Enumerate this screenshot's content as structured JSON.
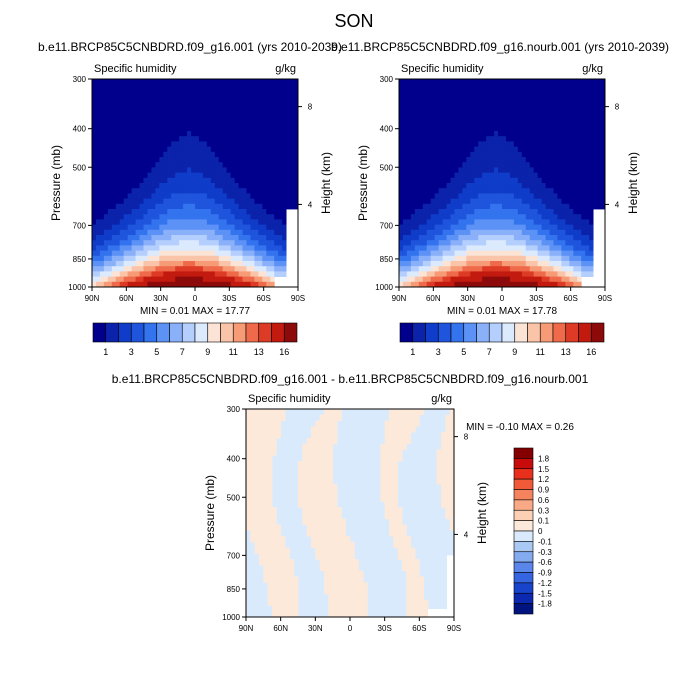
{
  "title": "SON",
  "chart_data": [
    {
      "type": "heatmap",
      "title": "b.e11.BRCP85C5CNBDRD.f09_g16.001 (yrs 2010-2039)",
      "left_label": "Specific humidity",
      "units": "g/kg",
      "ylabel": "Pressure (mb)",
      "ylabel_right": "Height (km)",
      "x_ticks": [
        "90N",
        "60N",
        "30N",
        "0",
        "30S",
        "60S",
        "90S"
      ],
      "y_ticks": [
        "300",
        "400",
        "500",
        "700",
        "850",
        "1000"
      ],
      "y_right_ticks": [
        "8",
        "4"
      ],
      "stats": "MIN =   0.01   MAX =   17.77",
      "colorbar_ticks": [
        "1",
        "3",
        "5",
        "7",
        "9",
        "11",
        "13",
        "16"
      ],
      "levels": [
        1,
        2,
        3,
        4,
        5,
        6,
        7,
        8,
        9,
        10,
        11,
        12,
        13,
        14,
        16
      ],
      "min": 0.01,
      "max": 17.77,
      "ylim": [
        1000,
        300
      ],
      "xlim": [
        90,
        -90
      ]
    },
    {
      "type": "heatmap",
      "title": "b.e11.BRCP85C5CNBDRD.f09_g16.nourb.001 (yrs 2010-2039)",
      "left_label": "Specific humidity",
      "units": "g/kg",
      "ylabel": "Pressure (mb)",
      "ylabel_right": "Height (km)",
      "x_ticks": [
        "90N",
        "60N",
        "30N",
        "0",
        "30S",
        "60S",
        "90S"
      ],
      "y_ticks": [
        "300",
        "400",
        "500",
        "700",
        "850",
        "1000"
      ],
      "y_right_ticks": [
        "8",
        "4"
      ],
      "stats": "MIN =   0.01   MAX =   17.78",
      "colorbar_ticks": [
        "1",
        "3",
        "5",
        "7",
        "9",
        "11",
        "13",
        "16"
      ],
      "levels": [
        1,
        2,
        3,
        4,
        5,
        6,
        7,
        8,
        9,
        10,
        11,
        12,
        13,
        14,
        16
      ],
      "min": 0.01,
      "max": 17.78,
      "ylim": [
        1000,
        300
      ],
      "xlim": [
        90,
        -90
      ]
    },
    {
      "type": "heatmap",
      "title": "b.e11.BRCP85C5CNBDRD.f09_g16.001 - b.e11.BRCP85C5CNBDRD.f09_g16.nourb.001",
      "left_label": "Specific humidity",
      "units": "g/kg",
      "ylabel": "Pressure (mb)",
      "ylabel_right": "Height (km)",
      "x_ticks": [
        "90N",
        "60N",
        "30N",
        "0",
        "30S",
        "60S",
        "90S"
      ],
      "y_ticks": [
        "300",
        "400",
        "500",
        "700",
        "850",
        "1000"
      ],
      "y_right_ticks": [
        "8",
        "4"
      ],
      "stats": "MIN =  -0.10   MAX =   0.26",
      "colorbar_labels": [
        "1.8",
        "1.5",
        "1.2",
        "0.9",
        "0.6",
        "0.3",
        "0.1",
        "0",
        "-0.1",
        "-0.3",
        "-0.6",
        "-0.9",
        "-1.2",
        "-1.5",
        "-1.8"
      ],
      "min": -0.1,
      "max": 0.26,
      "ylim": [
        1000,
        300
      ],
      "xlim": [
        90,
        -90
      ]
    }
  ],
  "colors": {
    "seq": [
      "#00008c",
      "#0a23aa",
      "#0f3cc8",
      "#1e55dc",
      "#3373ee",
      "#5c92f5",
      "#8ab0fa",
      "#b4cffd",
      "#dceafe",
      "#fbe3d6",
      "#fac4a8",
      "#f79a76",
      "#ef6a4a",
      "#dd3b25",
      "#c21a0f",
      "#8c0a0a"
    ],
    "diff": [
      "#840000",
      "#c80c0c",
      "#e8301c",
      "#f05a38",
      "#f5835e",
      "#f9a985",
      "#fbd0b5",
      "#fde9da",
      "#d8eafb",
      "#a9c9f4",
      "#84aaf0",
      "#5a86ec",
      "#3565e0",
      "#1844cc",
      "#0d28b0",
      "#001480"
    ],
    "neg": "#d8eafb",
    "pos": "#fde9da"
  }
}
